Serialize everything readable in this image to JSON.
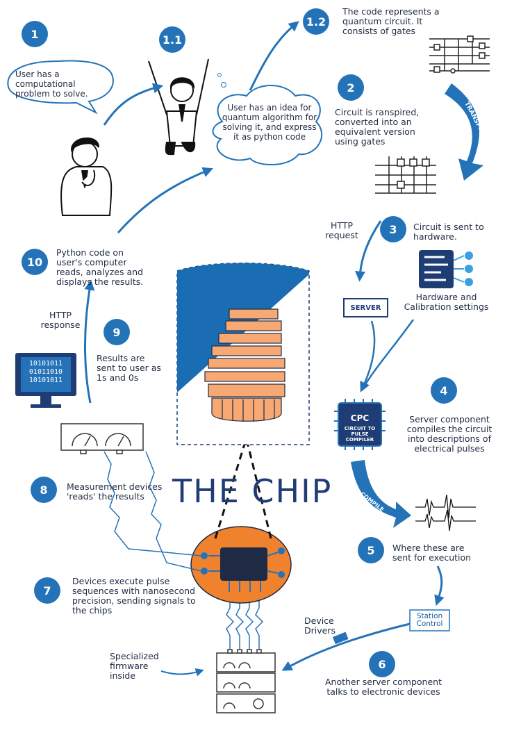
{
  "steps": [
    {
      "num": "1",
      "text": "User has a computational problem to solve."
    },
    {
      "num": "1.1",
      "text": "User has an idea for quantum algorithm for solving it, and express it as python code"
    },
    {
      "num": "1.2",
      "text": "The code represents a quantum circuit. It consists of gates"
    },
    {
      "num": "2",
      "text": "Circuit is ranspired, converted into an equivalent version using gates"
    },
    {
      "num": "3",
      "text": "Circuit is sent to hardware."
    },
    {
      "num": "4",
      "text": "Server component compiles the circuit into descriptions of electrical pulses"
    },
    {
      "num": "5",
      "text": "Where these are sent for execution"
    },
    {
      "num": "6",
      "text": "Another server component talks to electronic devices"
    },
    {
      "num": "7",
      "text": "Devices execute pulse sequences with nanosecond precision, sending signals to the chips"
    },
    {
      "num": "8",
      "text": "Measurement devices 'reads' the results"
    },
    {
      "num": "9",
      "text": "Results are sent to user as 1s and 0s"
    },
    {
      "num": "10",
      "text": "Python code on user's computer reads, analyzes and displays the results."
    }
  ],
  "labels": {
    "http_request": "HTTP request",
    "http_response": "HTTP response",
    "server": "SERVER",
    "hardware_settings": "Hardware and Calibration settings",
    "transpile": "TRANSPILE",
    "compile": "COMPILE",
    "cpc_title": "CPC",
    "cpc_sub": "CIRCUIT TO PULSE COMPILER",
    "station_control": "Station Control",
    "device_drivers": "Device Drivers",
    "firmware": "Specialized firmware inside",
    "the_chip": "THE CHIP",
    "binary": [
      "10101011",
      "01011010",
      "10101011"
    ]
  },
  "colors": {
    "accent": "#2473b8",
    "orange": "#f0822e",
    "navy": "#1f2a44",
    "light_orange": "#f7a873"
  }
}
